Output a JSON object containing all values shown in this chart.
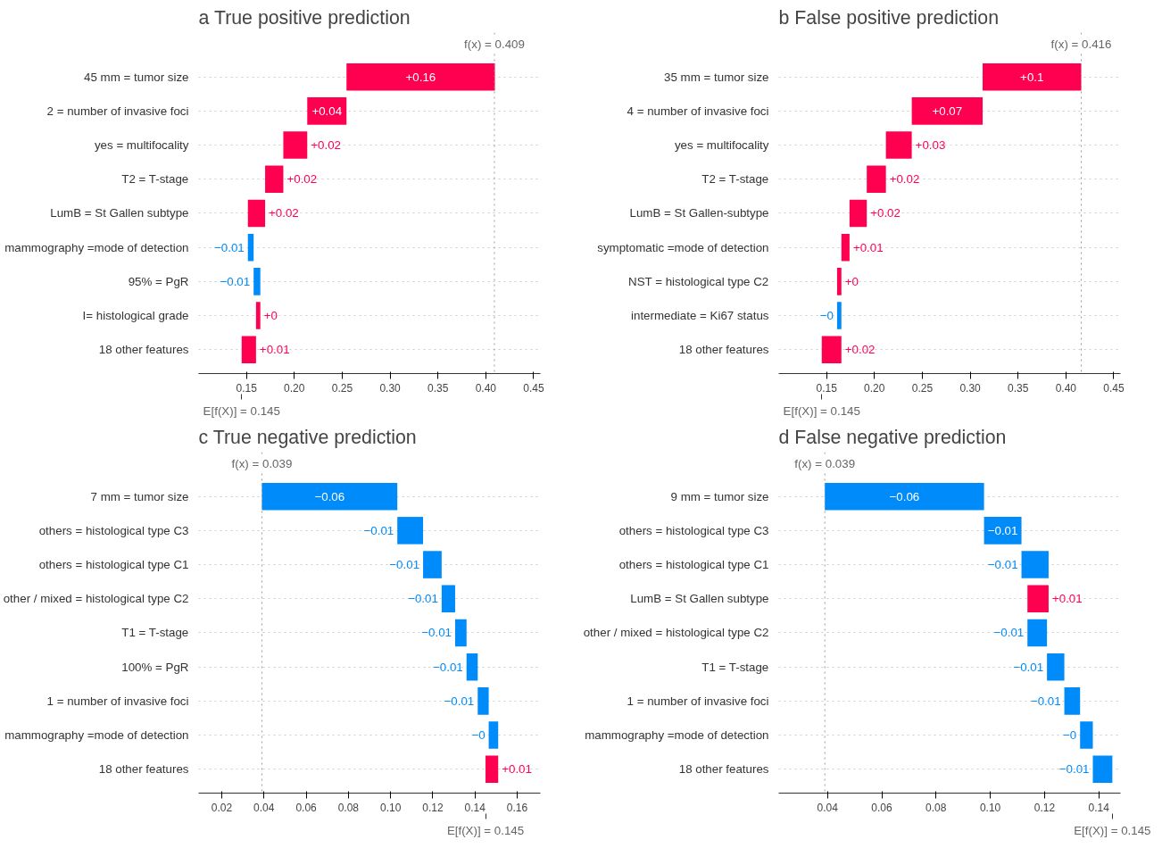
{
  "chart_data": [
    {
      "type": "bar",
      "orientation": "horizontal",
      "title": "a True positive prediction",
      "categories": [
        "45 mm = tumor size",
        "2 = number of invasive foci",
        "yes = multifocality",
        "T2 = T-stage",
        "LumB = St Gallen subtype",
        "mammography =mode of detection",
        "95% = PgR",
        "I= histological grade",
        "18 other features"
      ],
      "values": [
        0.155,
        0.041,
        0.025,
        0.019,
        0.018,
        -0.006,
        -0.007,
        0.0045,
        0.015
      ],
      "base": [
        0.2545,
        0.2135,
        0.1885,
        0.1695,
        0.1515,
        0.1575,
        0.1645,
        0.16,
        0.145
      ],
      "colors": [
        "#ff0051",
        "#ff0051",
        "#ff0051",
        "#ff0051",
        "#ff0051",
        "#008bfb",
        "#008bfb",
        "#ff0051",
        "#ff0051"
      ],
      "value_labels": [
        "+0.16",
        "+0.04",
        "+0.02",
        "+0.02",
        "+0.02",
        "−0.01",
        "−0.01",
        "+0",
        "+0.01"
      ],
      "xlim": [
        0.1,
        0.457
      ],
      "xticks": [
        {
          "value": 0.15,
          "label": "0.15"
        },
        {
          "value": 0.2,
          "label": "0.20"
        },
        {
          "value": 0.25,
          "label": "0.25"
        },
        {
          "value": 0.3,
          "label": "0.30"
        },
        {
          "value": 0.35,
          "label": "0.35"
        },
        {
          "value": 0.4,
          "label": "0.40"
        },
        {
          "value": 0.45,
          "label": "0.45"
        }
      ],
      "grid": "y",
      "ref_lines": [
        {
          "axis": "x",
          "value": 0.409,
          "label": "f(x) = 0.409",
          "line_style": "dotted"
        }
      ],
      "annotations": [
        "E[f(X)] = 0.145"
      ]
    },
    {
      "type": "bar",
      "orientation": "horizontal",
      "title": "b False positive prediction",
      "categories": [
        "35 mm = tumor size",
        "4 = number of invasive foci",
        "yes = multifocality",
        "T2 = T-stage",
        "LumB = St Gallen-subtype",
        "symptomatic =mode of detection",
        "NST = histological type C2",
        "intermediate = Ki67 status",
        "18 other features"
      ],
      "values": [
        0.103,
        0.074,
        0.027,
        0.02,
        0.018,
        0.0085,
        0.0045,
        -0.0045,
        0.0205
      ],
      "base": [
        0.313,
        0.239,
        0.212,
        0.192,
        0.174,
        0.1655,
        0.161,
        0.1655,
        0.145
      ],
      "colors": [
        "#ff0051",
        "#ff0051",
        "#ff0051",
        "#ff0051",
        "#ff0051",
        "#ff0051",
        "#ff0051",
        "#008bfb",
        "#ff0051"
      ],
      "value_labels": [
        "+0.1",
        "+0.07",
        "+0.03",
        "+0.02",
        "+0.02",
        "+0.01",
        "+0",
        "−0",
        "+0.02"
      ],
      "xlim": [
        0.1,
        0.457
      ],
      "xticks": [
        {
          "value": 0.15,
          "label": "0.15"
        },
        {
          "value": 0.2,
          "label": "0.20"
        },
        {
          "value": 0.25,
          "label": "0.25"
        },
        {
          "value": 0.3,
          "label": "0.30"
        },
        {
          "value": 0.35,
          "label": "0.35"
        },
        {
          "value": 0.4,
          "label": "0.40"
        },
        {
          "value": 0.45,
          "label": "0.45"
        }
      ],
      "grid": "y",
      "ref_lines": [
        {
          "axis": "x",
          "value": 0.416,
          "label": "f(x) = 0.416",
          "line_style": "dotted"
        }
      ],
      "annotations": [
        "E[f(X)] = 0.145"
      ]
    },
    {
      "type": "bar",
      "orientation": "horizontal",
      "title": "c True negative prediction",
      "categories": [
        "7 mm = tumor size",
        "others = histological type C3",
        "others = histological type C1",
        "other / mixed = histological type C2",
        "T1 = T-stage",
        "100% = PgR",
        "1 = number of invasive foci",
        "mammography =mode of detection",
        "18 other features"
      ],
      "values": [
        -0.0642,
        -0.0122,
        -0.0088,
        -0.0064,
        -0.0054,
        -0.0053,
        -0.0052,
        -0.0045,
        0.006
      ],
      "base": [
        0.1032,
        0.1154,
        0.1242,
        0.1306,
        0.136,
        0.1413,
        0.1465,
        0.151,
        0.145
      ],
      "colors": [
        "#008bfb",
        "#008bfb",
        "#008bfb",
        "#008bfb",
        "#008bfb",
        "#008bfb",
        "#008bfb",
        "#008bfb",
        "#ff0051"
      ],
      "value_labels": [
        "−0.06",
        "−0.01",
        "−0.01",
        "−0.01",
        "−0.01",
        "−0.01",
        "−0.01",
        "−0",
        "+0.01"
      ],
      "xlim": [
        0.009,
        0.171
      ],
      "xticks": [
        {
          "value": 0.02,
          "label": "0.02"
        },
        {
          "value": 0.04,
          "label": "0.04"
        },
        {
          "value": 0.06,
          "label": "0.06"
        },
        {
          "value": 0.08,
          "label": "0.08"
        },
        {
          "value": 0.1,
          "label": "0.10"
        },
        {
          "value": 0.12,
          "label": "0.12"
        },
        {
          "value": 0.14,
          "label": "0.14"
        },
        {
          "value": 0.16,
          "label": "0.16"
        }
      ],
      "grid": "y",
      "ref_lines": [
        {
          "axis": "x",
          "value": 0.039,
          "label": "f(x) = 0.039",
          "line_style": "dotted"
        }
      ],
      "annotations": [
        "E[f(X)] = 0.145"
      ]
    },
    {
      "type": "bar",
      "orientation": "horizontal",
      "title": "d False negative prediction",
      "categories": [
        "9 mm = tumor size",
        "others = histological type C3",
        "others = histological type C1",
        "LumB = St Gallen subtype",
        "other / mixed = histological type C2",
        "T1 = T-stage",
        "1 = number of invasive foci",
        "mammography =mode of detection",
        "18 other features"
      ],
      "values": [
        -0.0587,
        -0.0138,
        -0.01,
        0.0078,
        -0.0072,
        -0.0064,
        -0.0058,
        -0.0047,
        -0.0072
      ],
      "base": [
        0.0977,
        0.1115,
        0.1215,
        0.1137,
        0.1209,
        0.1273,
        0.1331,
        0.1378,
        0.145
      ],
      "colors": [
        "#008bfb",
        "#008bfb",
        "#008bfb",
        "#ff0051",
        "#008bfb",
        "#008bfb",
        "#008bfb",
        "#008bfb",
        "#008bfb"
      ],
      "value_labels": [
        "−0.06",
        "−0.01",
        "−0.01",
        "+0.01",
        "−0.01",
        "−0.01",
        "−0.01",
        "−0",
        "−0.01"
      ],
      "xlim": [
        0.022,
        0.148
      ],
      "xticks": [
        {
          "value": 0.04,
          "label": "0.04"
        },
        {
          "value": 0.06,
          "label": "0.06"
        },
        {
          "value": 0.08,
          "label": "0.08"
        },
        {
          "value": 0.1,
          "label": "0.10"
        },
        {
          "value": 0.12,
          "label": "0.12"
        },
        {
          "value": 0.14,
          "label": "0.14"
        }
      ],
      "grid": "y",
      "ref_lines": [
        {
          "axis": "x",
          "value": 0.039,
          "label": "f(x) = 0.039",
          "line_style": "dotted"
        }
      ],
      "annotations": [
        "E[f(X)] = 0.145"
      ]
    }
  ]
}
